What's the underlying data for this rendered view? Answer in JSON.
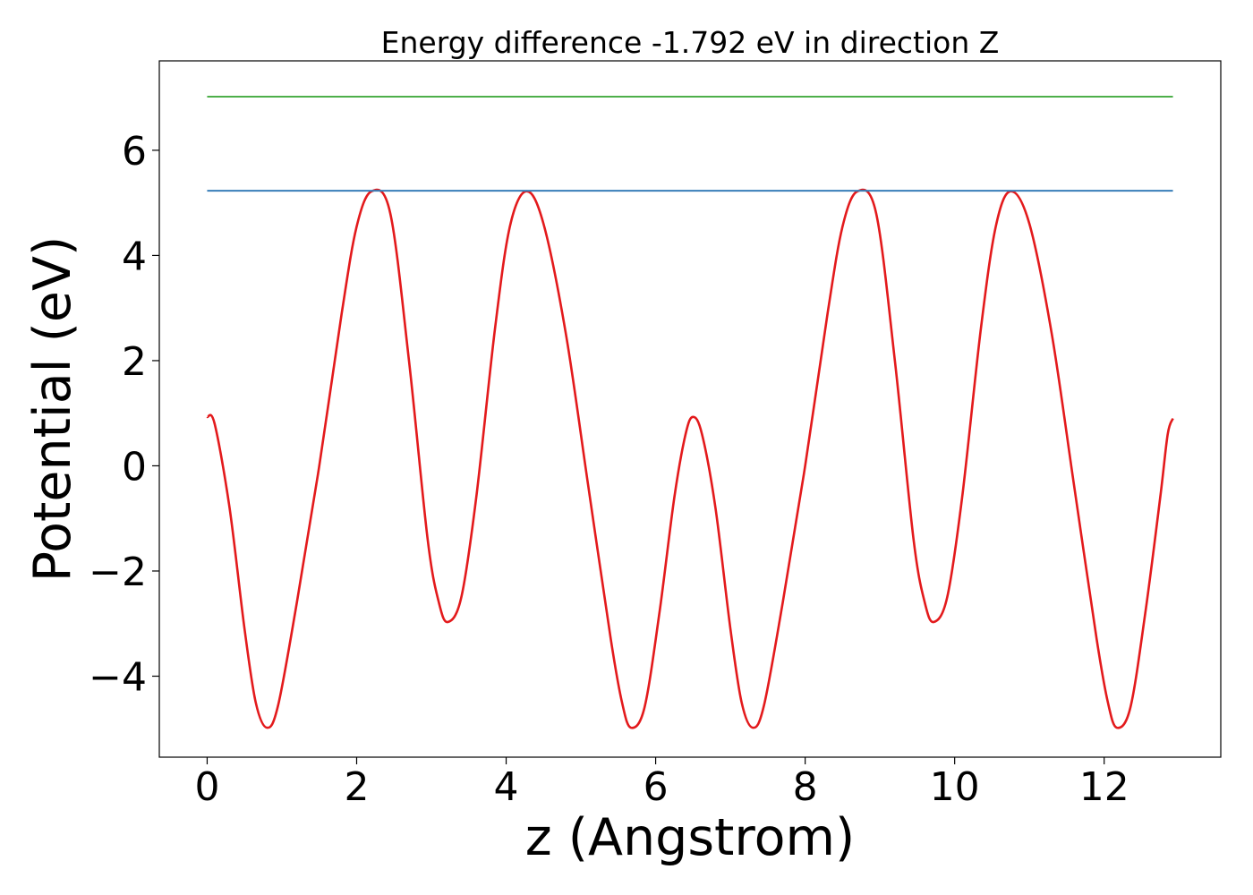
{
  "chart_data": {
    "type": "line",
    "title": "Energy difference -1.792 eV in direction Z",
    "xlabel": "z (Angstrom)",
    "ylabel": "Potential (eV)",
    "xlim": [
      -0.64,
      13.56
    ],
    "ylim": [
      -5.54,
      7.7
    ],
    "xticks": [
      0,
      2,
      4,
      6,
      8,
      10,
      12
    ],
    "xtick_labels": [
      "0",
      "2",
      "4",
      "6",
      "8",
      "10",
      "12"
    ],
    "yticks": [
      -4,
      -2,
      0,
      2,
      4,
      6
    ],
    "ytick_labels": [
      "−4",
      "−2",
      "0",
      "2",
      "4",
      "6"
    ],
    "grid": false,
    "series": [
      {
        "color": "#e31a1c",
        "style": "curve",
        "points": [
          [
            0.0,
            0.93
          ],
          [
            0.1,
            0.8
          ],
          [
            0.3,
            -0.8
          ],
          [
            0.5,
            -3.1
          ],
          [
            0.65,
            -4.5
          ],
          [
            0.8,
            -4.98
          ],
          [
            0.95,
            -4.55
          ],
          [
            1.2,
            -2.6
          ],
          [
            1.5,
            0.0
          ],
          [
            1.8,
            2.9
          ],
          [
            2.0,
            4.55
          ],
          [
            2.2,
            5.22
          ],
          [
            2.45,
            4.8
          ],
          [
            2.7,
            2.0
          ],
          [
            2.95,
            -1.4
          ],
          [
            3.1,
            -2.6
          ],
          [
            3.22,
            -2.97
          ],
          [
            3.4,
            -2.5
          ],
          [
            3.6,
            -0.6
          ],
          [
            3.85,
            2.6
          ],
          [
            4.05,
            4.55
          ],
          [
            4.27,
            5.22
          ],
          [
            4.5,
            4.6
          ],
          [
            4.8,
            2.5
          ],
          [
            5.1,
            -0.4
          ],
          [
            5.4,
            -3.3
          ],
          [
            5.55,
            -4.5
          ],
          [
            5.67,
            -4.98
          ],
          [
            5.85,
            -4.6
          ],
          [
            6.05,
            -2.8
          ],
          [
            6.25,
            -0.6
          ],
          [
            6.4,
            0.6
          ],
          [
            6.5,
            0.93
          ],
          [
            6.62,
            0.6
          ],
          [
            6.8,
            -0.8
          ],
          [
            7.0,
            -3.1
          ],
          [
            7.15,
            -4.5
          ],
          [
            7.3,
            -4.98
          ],
          [
            7.45,
            -4.55
          ],
          [
            7.7,
            -2.6
          ],
          [
            8.0,
            0.0
          ],
          [
            8.3,
            2.9
          ],
          [
            8.5,
            4.55
          ],
          [
            8.7,
            5.22
          ],
          [
            8.95,
            4.8
          ],
          [
            9.2,
            2.0
          ],
          [
            9.45,
            -1.4
          ],
          [
            9.6,
            -2.6
          ],
          [
            9.72,
            -2.97
          ],
          [
            9.9,
            -2.5
          ],
          [
            10.1,
            -0.6
          ],
          [
            10.35,
            2.6
          ],
          [
            10.55,
            4.55
          ],
          [
            10.75,
            5.22
          ],
          [
            11.0,
            4.6
          ],
          [
            11.3,
            2.5
          ],
          [
            11.6,
            -0.4
          ],
          [
            11.9,
            -3.3
          ],
          [
            12.05,
            -4.5
          ],
          [
            12.17,
            -4.98
          ],
          [
            12.35,
            -4.6
          ],
          [
            12.55,
            -2.8
          ],
          [
            12.75,
            -0.6
          ],
          [
            12.85,
            0.6
          ],
          [
            12.92,
            0.9
          ]
        ]
      },
      {
        "color": "#377eb8",
        "style": "line",
        "points": [
          [
            0.0,
            5.23
          ],
          [
            12.92,
            5.23
          ]
        ]
      },
      {
        "color": "#4daf4a",
        "style": "line",
        "points": [
          [
            0.0,
            7.02
          ],
          [
            12.92,
            7.02
          ]
        ]
      }
    ]
  }
}
